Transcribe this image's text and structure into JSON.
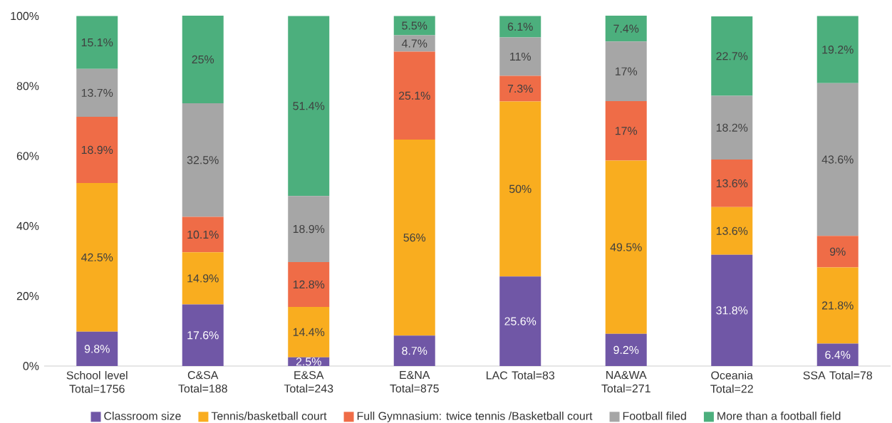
{
  "chart_data": {
    "type": "bar",
    "stacked": true,
    "categories": [
      "School level Total=1756",
      "C&SA Total=188",
      "E&SA Total=243",
      "E&NA Total=875",
      "LAC Total=83",
      "NA&WA Total=271",
      "Oceania Total=22",
      "SSA Total=78"
    ],
    "series": [
      {
        "name": "Classroom size",
        "color": "#7057a6",
        "values": [
          9.8,
          17.6,
          2.5,
          8.7,
          25.6,
          9.2,
          31.8,
          6.4
        ],
        "value_labels": [
          "9.8%",
          "17.6%",
          "2.5%",
          "8.7%",
          "25.6%",
          "9.2%",
          "31.8%",
          "6.4%"
        ]
      },
      {
        "name": "Tennis/basketball court",
        "color": "#f9ad1f",
        "values": [
          42.5,
          14.9,
          14.4,
          56,
          50,
          49.5,
          13.6,
          21.8
        ],
        "value_labels": [
          "42.5%",
          "14.9%",
          "14.4%",
          "56%",
          "50%",
          "49.5%",
          "13.6%",
          "21.8%"
        ]
      },
      {
        "name": "Full Gymnasium: twice tennis /Basketball court",
        "color": "#ef6c47",
        "values": [
          18.9,
          10.1,
          12.8,
          25.1,
          7.3,
          17,
          13.6,
          9
        ],
        "value_labels": [
          "18.9%",
          "10.1%",
          "12.8%",
          "25.1%",
          "7.3%",
          "17%",
          "13.6%",
          "9%"
        ]
      },
      {
        "name": "Football filed",
        "color": "#a6a6a6",
        "values": [
          13.7,
          32.5,
          18.9,
          4.7,
          11,
          17,
          18.2,
          43.6
        ],
        "value_labels": [
          "13.7%",
          "32.5%",
          "18.9%",
          "4.7%",
          "11%",
          "17%",
          "18.2%",
          "43.6%"
        ]
      },
      {
        "name": "More than a football field",
        "color": "#4caf7d",
        "values": [
          15.1,
          25,
          51.4,
          5.5,
          6.1,
          7.4,
          22.7,
          19.2
        ],
        "value_labels": [
          "15.1%",
          "25%",
          "51.4%",
          "5.5%",
          "6.1%",
          "7.4%",
          "22.7%",
          "19.2%"
        ]
      }
    ],
    "ylim": [
      0,
      100.1
    ],
    "yticks": [
      {
        "value": 0,
        "label": "0%"
      },
      {
        "value": 20,
        "label": "20%"
      },
      {
        "value": 40,
        "label": "40%"
      },
      {
        "value": 60,
        "label": "60%"
      },
      {
        "value": 80,
        "label": "80%"
      },
      {
        "value": 100,
        "label": "100%"
      }
    ],
    "grid": false,
    "legend": "bottom"
  }
}
